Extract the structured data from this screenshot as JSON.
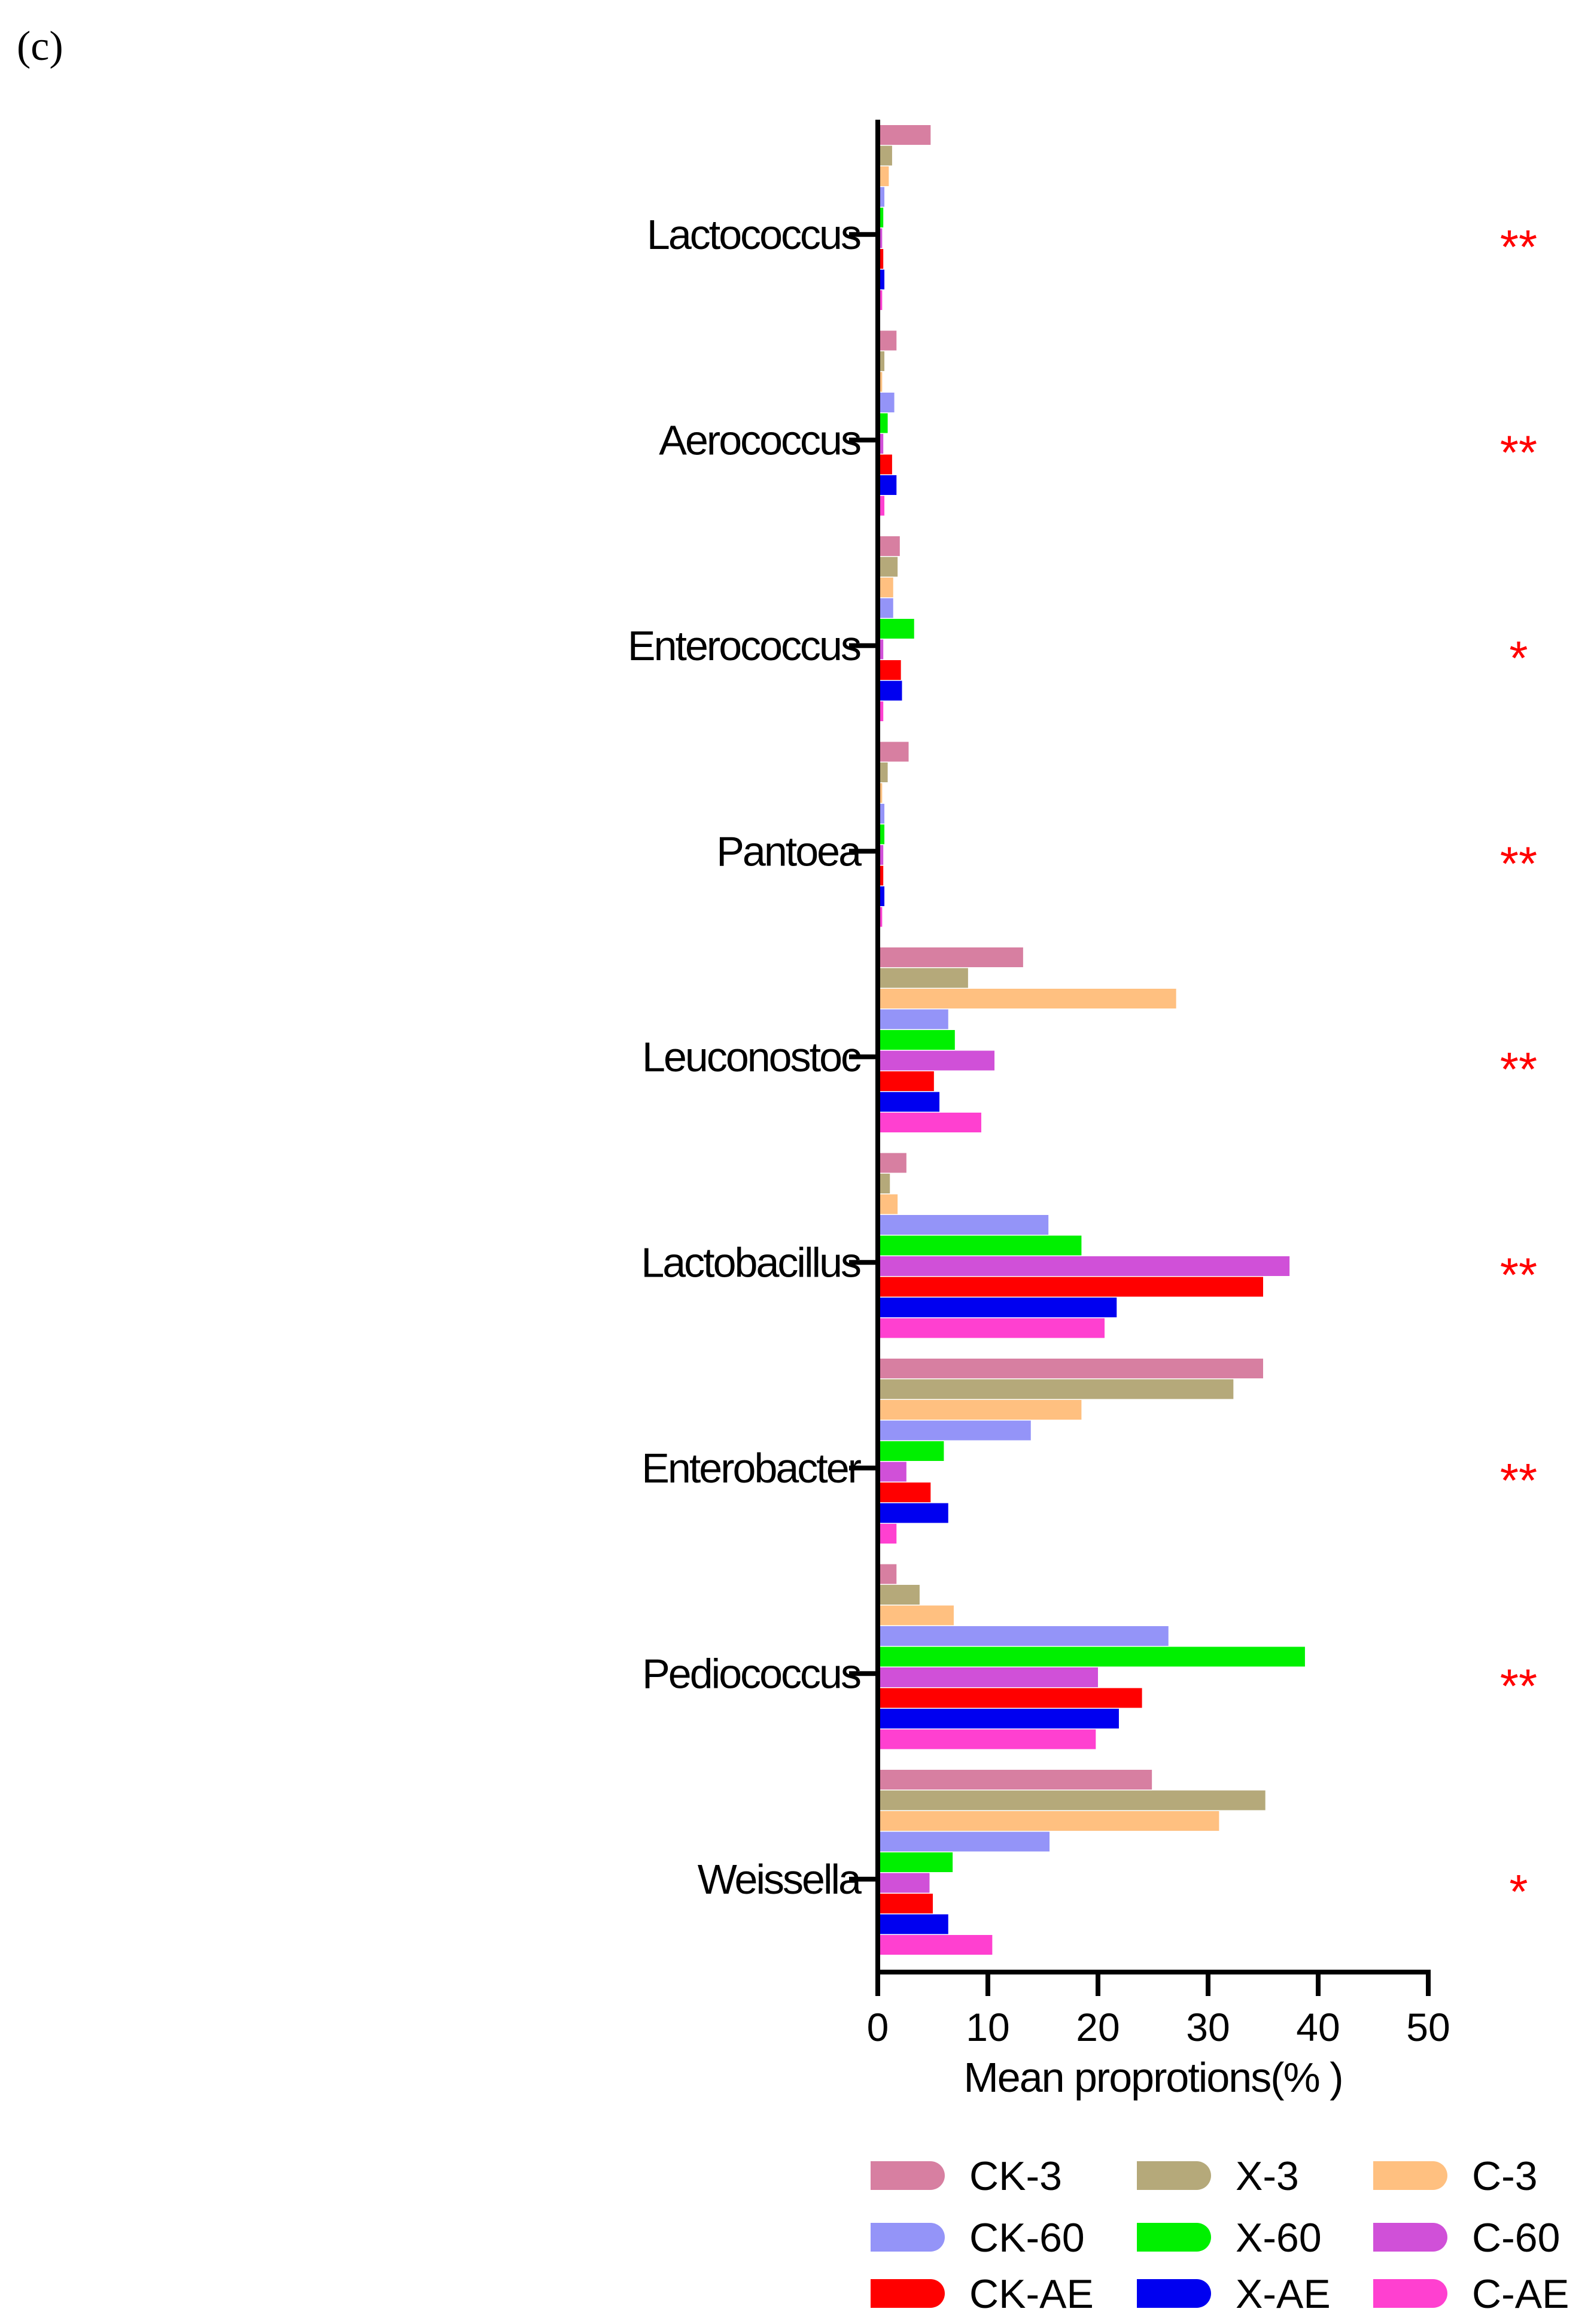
{
  "panel_label": "(c)",
  "chart_data": {
    "type": "bar",
    "orientation": "horizontal",
    "xlabel": "Mean proprotions(% )",
    "ylabel": "",
    "xlim": [
      0,
      50
    ],
    "xticks": [
      0,
      10,
      20,
      30,
      40,
      50
    ],
    "grid": false,
    "legend_position": "bottom",
    "categories": [
      "Lactococcus",
      "Aerococcus",
      "Enterococcus",
      "Pantoea",
      "Leuconostoc",
      "Lactobacillus",
      "Enterobacter",
      "Pediococcus",
      "Weissella"
    ],
    "category_labels": [
      "Lactococcus",
      "Aerococcus",
      "Enterococcus",
      "Pantoea",
      "Leuconostoc",
      "Lactobacillus",
      "Enterobacter",
      "Pediococcus",
      "Weissella"
    ],
    "significance": [
      "**",
      "**",
      "*",
      "**",
      "**",
      "**",
      "**",
      "**",
      "*"
    ],
    "series": [
      {
        "name": "CK-3",
        "color": "#D77FA1",
        "values": [
          4.8,
          1.7,
          2.0,
          2.8,
          13.2,
          2.6,
          35.0,
          1.7,
          24.9
        ]
      },
      {
        "name": "X-3",
        "color": "#B5A97A",
        "values": [
          1.3,
          0.6,
          1.8,
          0.9,
          8.2,
          1.1,
          32.3,
          3.8,
          35.2
        ]
      },
      {
        "name": "C-3",
        "color": "#FFC080",
        "values": [
          1.0,
          0.4,
          1.4,
          0.4,
          27.1,
          1.8,
          18.5,
          6.9,
          31.0
        ]
      },
      {
        "name": "CK-60",
        "color": "#9494F8",
        "values": [
          0.6,
          1.5,
          1.4,
          0.6,
          6.4,
          15.5,
          13.9,
          26.4,
          15.6
        ]
      },
      {
        "name": "X-60",
        "color": "#00F000",
        "values": [
          0.5,
          0.9,
          3.3,
          0.6,
          7.0,
          18.5,
          6.0,
          38.8,
          6.8
        ]
      },
      {
        "name": "C-60",
        "color": "#D050D8",
        "values": [
          0.4,
          0.5,
          0.5,
          0.5,
          10.6,
          37.4,
          2.6,
          20.0,
          4.7
        ]
      },
      {
        "name": "CK-AE",
        "color": "#FF0000",
        "values": [
          0.5,
          1.3,
          2.1,
          0.5,
          5.1,
          35.0,
          4.8,
          24.0,
          5.0
        ]
      },
      {
        "name": "X-AE",
        "color": "#0000F0",
        "values": [
          0.6,
          1.7,
          2.2,
          0.6,
          5.6,
          21.7,
          6.4,
          21.9,
          6.4
        ]
      },
      {
        "name": "C-AE",
        "color": "#FF40D0",
        "values": [
          0.4,
          0.6,
          0.5,
          0.4,
          9.4,
          20.6,
          1.7,
          19.8,
          10.4
        ]
      }
    ]
  }
}
